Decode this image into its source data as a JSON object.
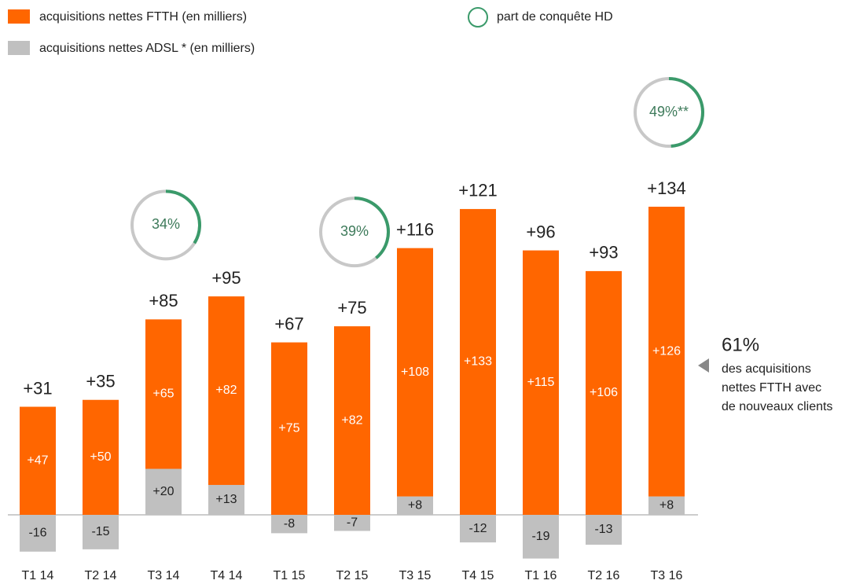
{
  "chart_data": {
    "type": "bar",
    "categories": [
      "T1 14",
      "T2 14",
      "T3 14",
      "T4 14",
      "T1 15",
      "T2 15",
      "T3 15",
      "T4 15",
      "T1 16",
      "T2 16",
      "T3 16"
    ],
    "series": [
      {
        "name": "acquisitions nettes FTTH (en milliers)",
        "color": "#ff6600",
        "values": [
          47,
          50,
          65,
          82,
          75,
          82,
          108,
          133,
          115,
          106,
          126
        ],
        "value_labels": [
          "+47",
          "+50",
          "+65",
          "+82",
          "+75",
          "+82",
          "+108",
          "+133",
          "+115",
          "+106",
          "+126"
        ]
      },
      {
        "name": "acquisitions nettes ADSL * (en milliers)",
        "color": "#c0c0c0",
        "values": [
          -16,
          -15,
          20,
          13,
          -8,
          -7,
          8,
          -12,
          -19,
          -13,
          8
        ],
        "value_labels": [
          "-16",
          "-15",
          "+20",
          "+13",
          "-8",
          "-7",
          "+8",
          "-12",
          "-19",
          "-13",
          "+8"
        ]
      }
    ],
    "totals": {
      "values": [
        31,
        35,
        85,
        95,
        67,
        75,
        116,
        121,
        96,
        93,
        134
      ],
      "value_labels": [
        "+31",
        "+35",
        "+85",
        "+95",
        "+67",
        "+75",
        "+116",
        "+121",
        "+96",
        "+93",
        "+134"
      ]
    },
    "share": {
      "name": "part de conquête HD",
      "color": "#3a9a6a",
      "values": [
        null,
        null,
        34,
        null,
        null,
        39,
        null,
        null,
        null,
        null,
        49
      ],
      "value_labels": [
        null,
        null,
        "34%",
        null,
        null,
        "39%",
        null,
        null,
        null,
        null,
        "49%**"
      ]
    },
    "annotation": {
      "value": "61%",
      "lines": [
        "des acquisitions",
        "nettes FTTH avec",
        "de nouveaux clients"
      ]
    }
  }
}
